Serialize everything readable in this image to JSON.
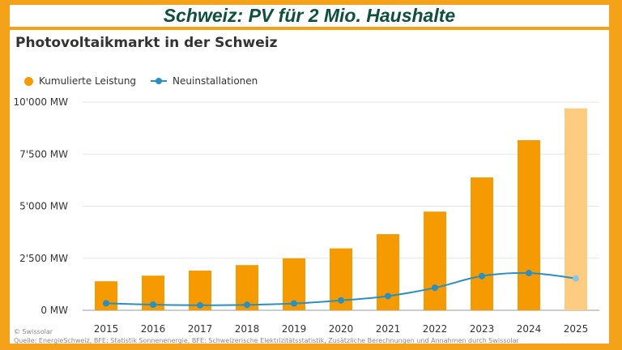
{
  "banner": {
    "title": "Schweiz: PV für 2 Mio. Haushalte"
  },
  "colors": {
    "frame": "#f4a21a",
    "bar": "#f59a00",
    "bar_forecast": "#fdcc80",
    "line": "#2a8fc1",
    "line_forecast": "#8cc6e6",
    "banner_text": "#0f4f3f"
  },
  "footer": {
    "copyright": "© Swissolar",
    "source": "Quelle: EnergieSchweiz, BFE: Statistik Sonnenenergie, BFE: Schweizerische Elektrizitätsstatistik, Zusätzliche Berechnungen und Annahmen durch Swissolar"
  },
  "chart_data": {
    "type": "bar",
    "title": "Photovoltaikmarkt in der Schweiz",
    "categories": [
      "2015",
      "2016",
      "2017",
      "2018",
      "2019",
      "2020",
      "2021",
      "2022",
      "2023",
      "2024",
      "2025"
    ],
    "series": [
      {
        "name": "Kumulierte Leistung",
        "type": "bar",
        "unit": "MW",
        "values": [
          1394,
          1664,
          1906,
          2171,
          2498,
          2973,
          3656,
          4739,
          6382,
          8170,
          9700
        ]
      },
      {
        "name": "Neuinstallationen",
        "type": "line",
        "unit": "MW",
        "values": [
          337,
          271,
          242,
          265,
          327,
          475,
          683,
          1083,
          1643,
          1788,
          1530
        ]
      }
    ],
    "forecast_categories": [
      "2025"
    ],
    "ylim": [
      0,
      10000
    ],
    "yticks": [
      0,
      2500,
      5000,
      7500,
      10000
    ],
    "ytick_labels": [
      "0 MW",
      "2'500 MW",
      "5'000 MW",
      "7'500 MW",
      "10'000 MW"
    ],
    "xlabel": "",
    "ylabel": "",
    "legend_position": "top-left",
    "grid": true
  }
}
